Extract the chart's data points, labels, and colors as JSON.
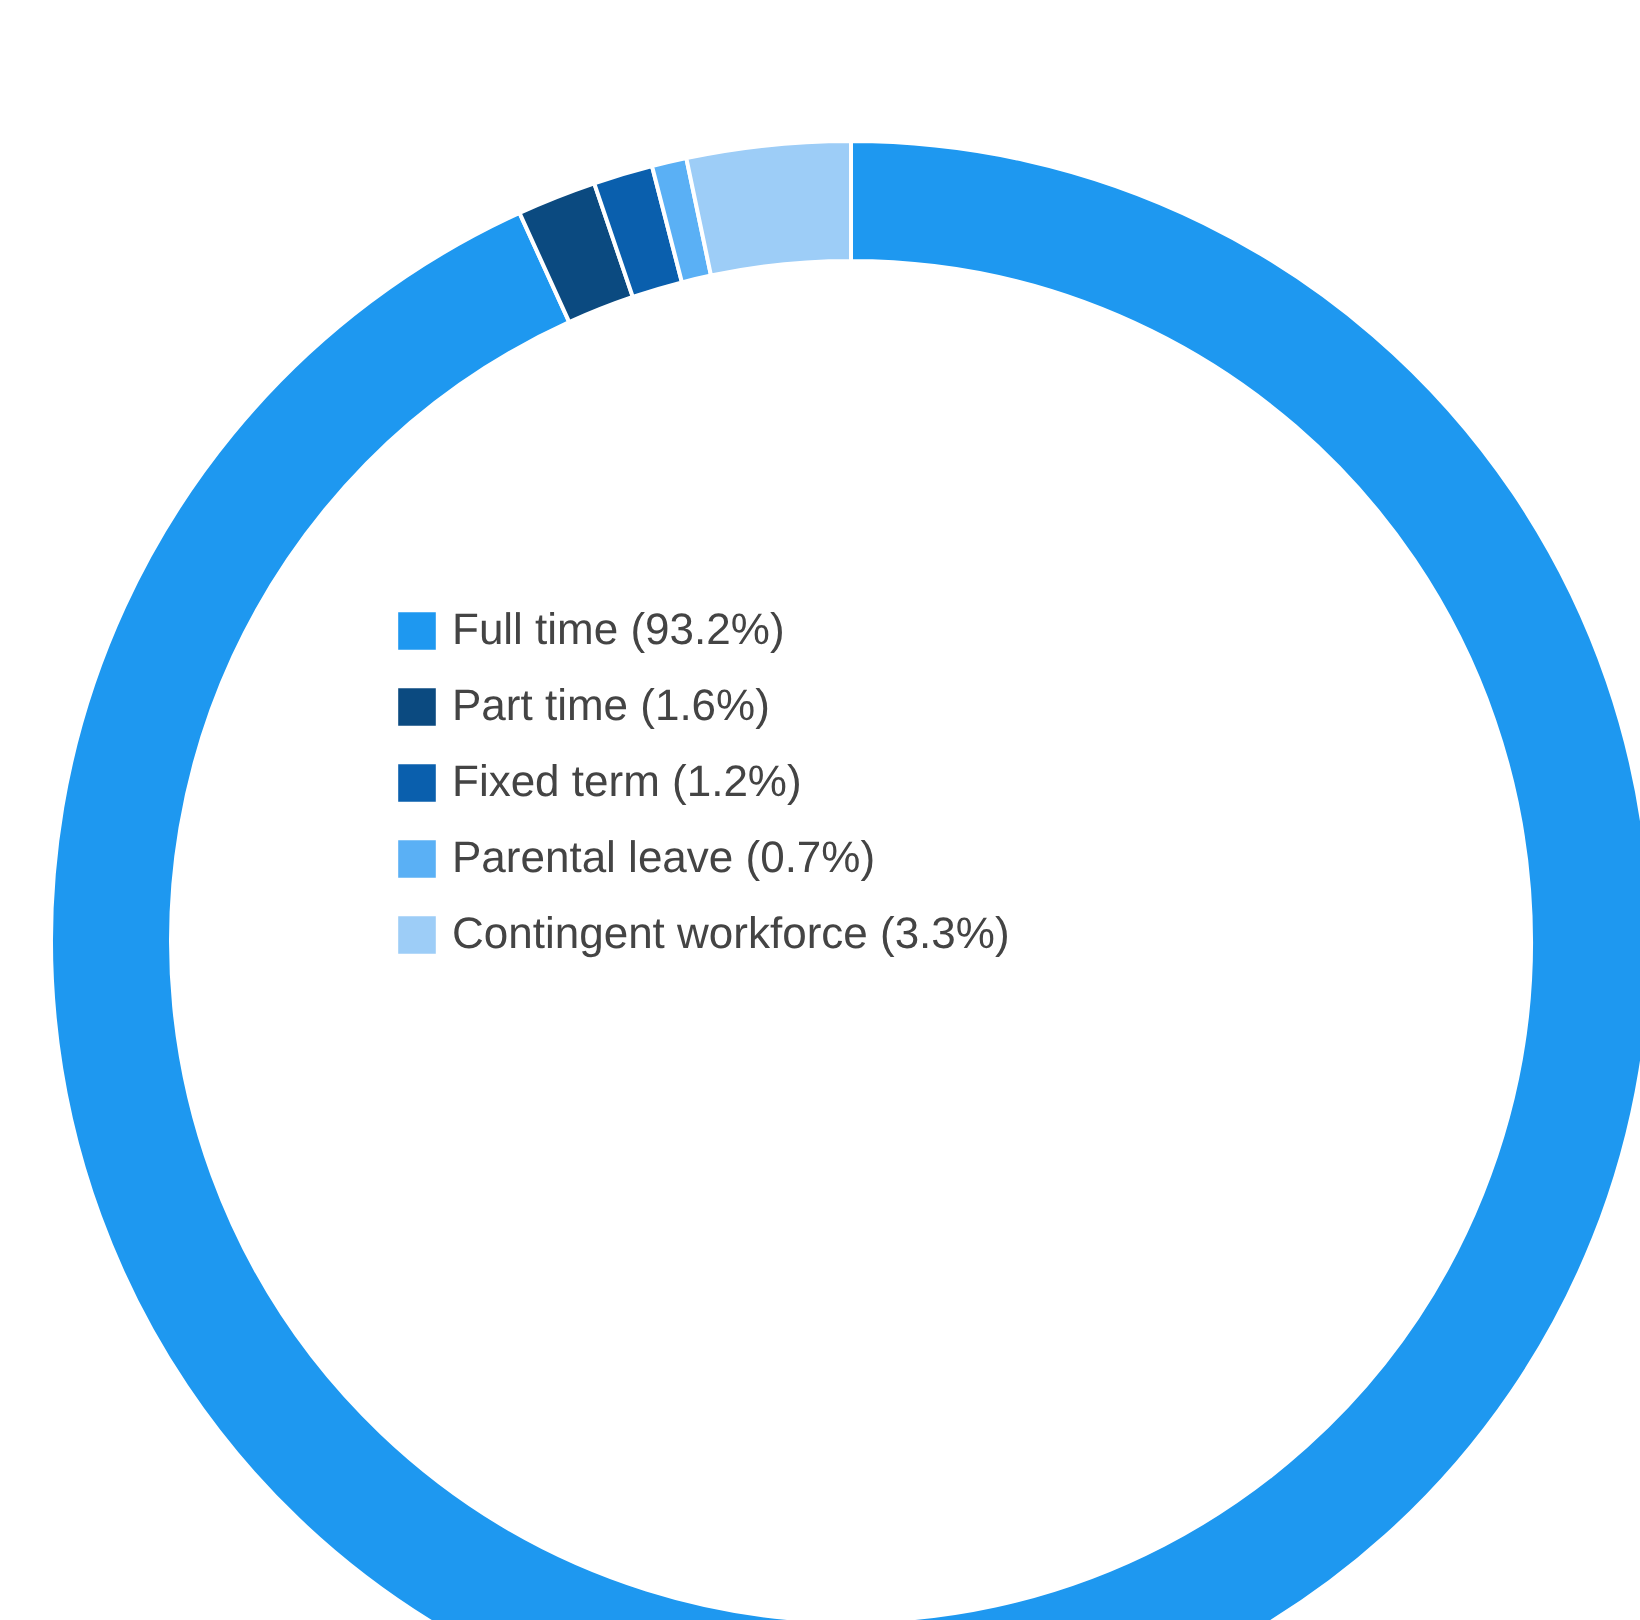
{
  "chart_data": {
    "type": "donut",
    "categories": [
      "Full time (93.2%)",
      "Part time (1.6%)",
      "Fixed term (1.2%)",
      "Parental leave (0.7%)",
      "Contingent workforce (3.3%)"
    ],
    "values": [
      93.2,
      1.6,
      1.2,
      0.7,
      3.3
    ],
    "colors": [
      "#1e98f0",
      "#0b4a80",
      "#0a5fad",
      "#5ab0f5",
      "#9dcdf7"
    ],
    "legend": "center"
  }
}
